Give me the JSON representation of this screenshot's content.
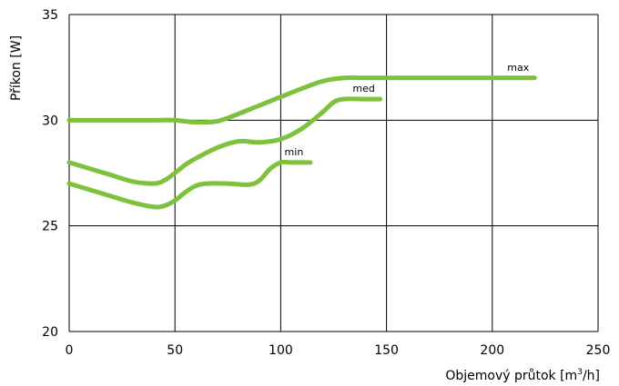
{
  "chart_data": {
    "type": "line",
    "xlabel": "Objemový průtok [m3/h]",
    "xlabel_parts": {
      "prefix": "Objemový průtok [m",
      "sup": "3",
      "suffix": "/h]"
    },
    "ylabel": "Příkon [W]",
    "xlim": [
      0,
      250
    ],
    "ylim": [
      20,
      35
    ],
    "x_ticks": [
      "0",
      "50",
      "100",
      "150",
      "200",
      "250"
    ],
    "y_ticks": [
      "20",
      "25",
      "30",
      "35"
    ],
    "grid": true,
    "series": [
      {
        "name": "max",
        "color": "#7dc13c",
        "points": [
          [
            0,
            30
          ],
          [
            20,
            30
          ],
          [
            40,
            30
          ],
          [
            50,
            30
          ],
          [
            60,
            29.9
          ],
          [
            70,
            29.95
          ],
          [
            80,
            30.3
          ],
          [
            90,
            30.7
          ],
          [
            100,
            31.1
          ],
          [
            110,
            31.5
          ],
          [
            120,
            31.85
          ],
          [
            130,
            32
          ],
          [
            140,
            32
          ],
          [
            150,
            32
          ],
          [
            200,
            32
          ],
          [
            220,
            32
          ]
        ]
      },
      {
        "name": "med",
        "color": "#7dc13c",
        "points": [
          [
            0,
            28
          ],
          [
            10,
            27.7
          ],
          [
            20,
            27.4
          ],
          [
            30,
            27.1
          ],
          [
            40,
            27
          ],
          [
            45,
            27.15
          ],
          [
            50,
            27.5
          ],
          [
            55,
            27.9
          ],
          [
            60,
            28.2
          ],
          [
            70,
            28.7
          ],
          [
            80,
            29
          ],
          [
            90,
            28.95
          ],
          [
            100,
            29.1
          ],
          [
            110,
            29.6
          ],
          [
            120,
            30.4
          ],
          [
            125,
            30.85
          ],
          [
            130,
            31
          ],
          [
            140,
            31
          ],
          [
            147,
            31
          ]
        ]
      },
      {
        "name": "min",
        "color": "#7dc13c",
        "points": [
          [
            0,
            27
          ],
          [
            10,
            26.7
          ],
          [
            20,
            26.4
          ],
          [
            30,
            26.1
          ],
          [
            40,
            25.9
          ],
          [
            45,
            25.95
          ],
          [
            50,
            26.2
          ],
          [
            55,
            26.6
          ],
          [
            60,
            26.9
          ],
          [
            65,
            27
          ],
          [
            75,
            27
          ],
          [
            85,
            26.95
          ],
          [
            90,
            27.15
          ],
          [
            95,
            27.7
          ],
          [
            100,
            28
          ],
          [
            105,
            28
          ],
          [
            114,
            28
          ]
        ]
      }
    ]
  }
}
